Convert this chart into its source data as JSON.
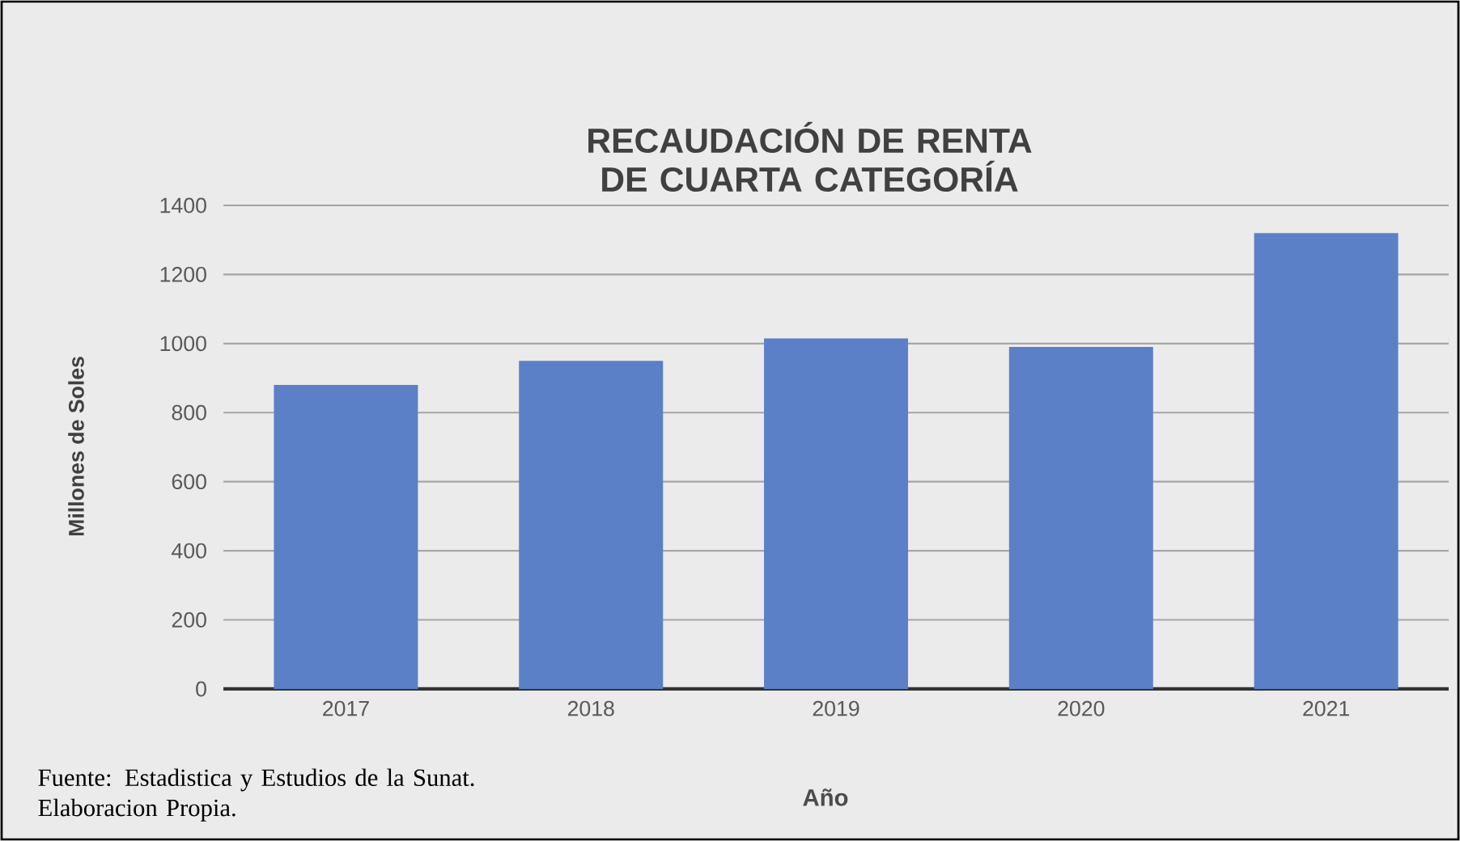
{
  "chart_data": {
    "type": "bar",
    "title": "RECAUDACIÓN DE RENTA DE CUARTA CATEGORÍA",
    "categories": [
      "2017",
      "2018",
      "2019",
      "2020",
      "2021"
    ],
    "values": [
      880,
      950,
      1015,
      990,
      1320
    ],
    "color": "#5b80c8",
    "ylim": [
      0,
      1400
    ],
    "yticks": [
      0,
      200,
      400,
      600,
      800,
      1000,
      1200,
      1400
    ],
    "grid": "y",
    "xlabel": "Año",
    "ylabel": "Millones de Soles",
    "annotations": [
      "Fuente: Estadistica y Estudios de la Sunat. Elaboracion Propia."
    ]
  }
}
